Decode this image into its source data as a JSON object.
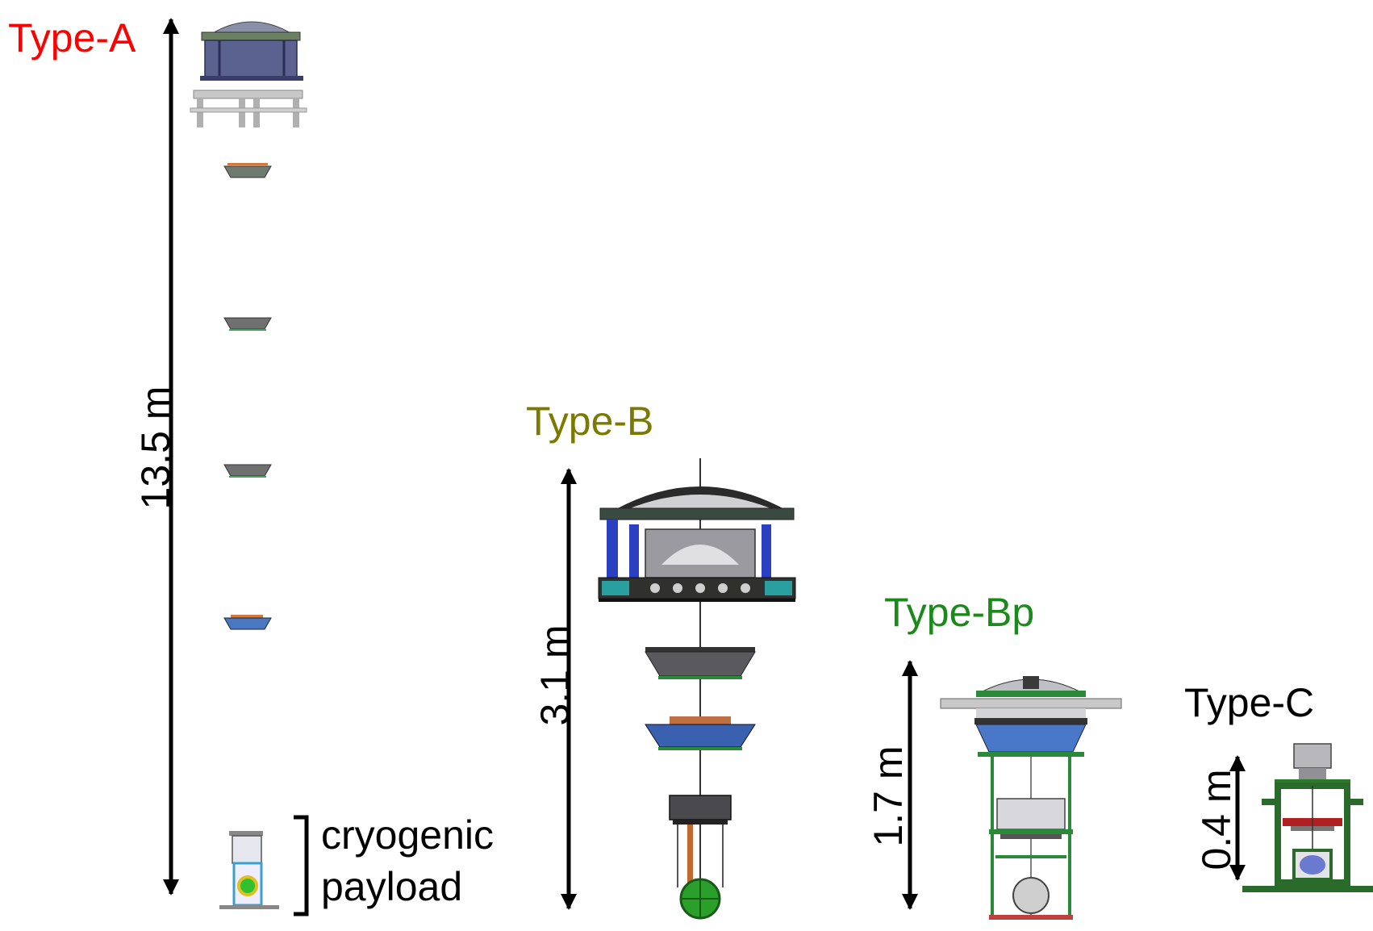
{
  "types": [
    {
      "label": "Type-A",
      "color": "#ff0000",
      "height": "13.5 m"
    },
    {
      "label": "Type-B",
      "color": "#7a7a00",
      "height": "3.1 m"
    },
    {
      "label": "Type-Bp",
      "color": "#1a8a1a",
      "height": "1.7 m"
    },
    {
      "label": "Type-C",
      "color": "#000000",
      "height": "0.4 m"
    }
  ],
  "payload": {
    "line1": "cryogenic",
    "line2": "payload"
  }
}
